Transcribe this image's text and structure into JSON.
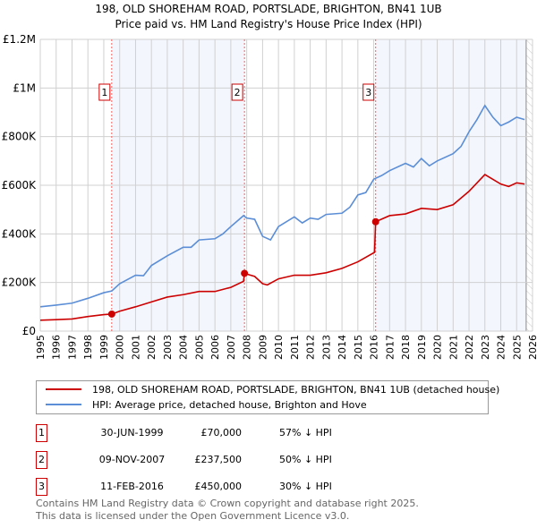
{
  "chart_data": {
    "type": "line",
    "title": "198, OLD SHOREHAM ROAD, PORTSLADE, BRIGHTON, BN41 1UB",
    "subtitle": "Price paid vs. HM Land Registry's House Price Index (HPI)",
    "xlim": [
      1995,
      2026
    ],
    "ylim": [
      0,
      1200000
    ],
    "y_ticks": [
      {
        "v": 0,
        "label": "£0"
      },
      {
        "v": 200000,
        "label": "£200K"
      },
      {
        "v": 400000,
        "label": "£400K"
      },
      {
        "v": 600000,
        "label": "£600K"
      },
      {
        "v": 800000,
        "label": "£800K"
      },
      {
        "v": 1000000,
        "label": "£1M"
      },
      {
        "v": 1200000,
        "label": "£1.2M"
      }
    ],
    "x_ticks": [
      "1995",
      "1996",
      "1997",
      "1998",
      "1999",
      "2000",
      "2001",
      "2002",
      "2003",
      "2004",
      "2005",
      "2006",
      "2007",
      "2008",
      "2009",
      "2010",
      "2011",
      "2012",
      "2013",
      "2014",
      "2015",
      "2016",
      "2017",
      "2018",
      "2019",
      "2020",
      "2021",
      "2022",
      "2023",
      "2024",
      "2025",
      "2026"
    ],
    "grid": true,
    "series": [
      {
        "name": "198, OLD SHOREHAM ROAD, PORTSLADE, BRIGHTON, BN41 1UB (detached house)",
        "color": "#cc0000",
        "x": [
          1995,
          1996,
          1997,
          1998,
          1999,
          1999.5,
          2000,
          2001,
          2002,
          2003,
          2004,
          2005,
          2006,
          2007,
          2007.8,
          2007.86,
          2008.5,
          2009,
          2009.3,
          2010,
          2011,
          2012,
          2013,
          2014,
          2015,
          2016.05,
          2016.12,
          2017,
          2018,
          2019,
          2020,
          2021,
          2022,
          2023,
          2024,
          2024.5,
          2025,
          2025.5
        ],
        "y": [
          45000,
          47000,
          50000,
          60000,
          68000,
          70000,
          82000,
          100000,
          120000,
          140000,
          150000,
          163000,
          163000,
          180000,
          205000,
          237500,
          225000,
          195000,
          190000,
          215000,
          230000,
          230000,
          240000,
          258000,
          285000,
          324000,
          450000,
          475000,
          482000,
          505000,
          500000,
          520000,
          575000,
          644000,
          605000,
          595000,
          610000,
          605000
        ]
      },
      {
        "name": "HPI: Average price, detached house, Brighton and Hove",
        "color": "#5b8ed6",
        "x": [
          1995,
          1996,
          1997,
          1998,
          1999,
          1999.5,
          2000,
          2001,
          2001.5,
          2002,
          2003,
          2004,
          2004.5,
          2005,
          2006,
          2006.5,
          2007,
          2007.8,
          2008,
          2008.5,
          2009,
          2009.5,
          2010,
          2011,
          2011.5,
          2012,
          2012.5,
          2013,
          2014,
          2014.5,
          2015,
          2015.5,
          2016,
          2016.5,
          2017,
          2018,
          2018.5,
          2019,
          2019.5,
          2020,
          2021,
          2021.5,
          2022,
          2022.5,
          2023,
          2023.5,
          2024,
          2024.5,
          2025,
          2025.5
        ],
        "y": [
          100000,
          107000,
          115000,
          135000,
          158000,
          165000,
          195000,
          230000,
          228000,
          270000,
          310000,
          345000,
          345000,
          375000,
          380000,
          400000,
          430000,
          475000,
          465000,
          460000,
          390000,
          375000,
          430000,
          470000,
          445000,
          465000,
          460000,
          480000,
          485000,
          510000,
          560000,
          570000,
          625000,
          640000,
          660000,
          690000,
          675000,
          710000,
          680000,
          700000,
          730000,
          760000,
          820000,
          870000,
          928000,
          880000,
          845000,
          860000,
          880000,
          870000
        ]
      }
    ],
    "sales": [
      {
        "n": "1",
        "x": 1999.5,
        "y": 70000,
        "date": "30-JUN-1999",
        "price": "£70,000",
        "hpi": "57% ↓ HPI"
      },
      {
        "n": "2",
        "x": 2007.86,
        "y": 237500,
        "date": "09-NOV-2007",
        "price": "£237,500",
        "hpi": "50% ↓ HPI"
      },
      {
        "n": "3",
        "x": 2016.12,
        "y": 450000,
        "date": "11-FEB-2016",
        "price": "£450,000",
        "hpi": "30% ↓ HPI"
      }
    ],
    "shaded": [
      [
        1999.5,
        2007.86
      ],
      [
        2016.12,
        2025.6
      ]
    ],
    "forecast_hatch": [
      2025.6,
      2026
    ],
    "legend_position": "below"
  },
  "footer": {
    "line1": "Contains HM Land Registry data © Crown copyright and database right 2025.",
    "line2": "This data is licensed under the Open Government Licence v3.0."
  }
}
